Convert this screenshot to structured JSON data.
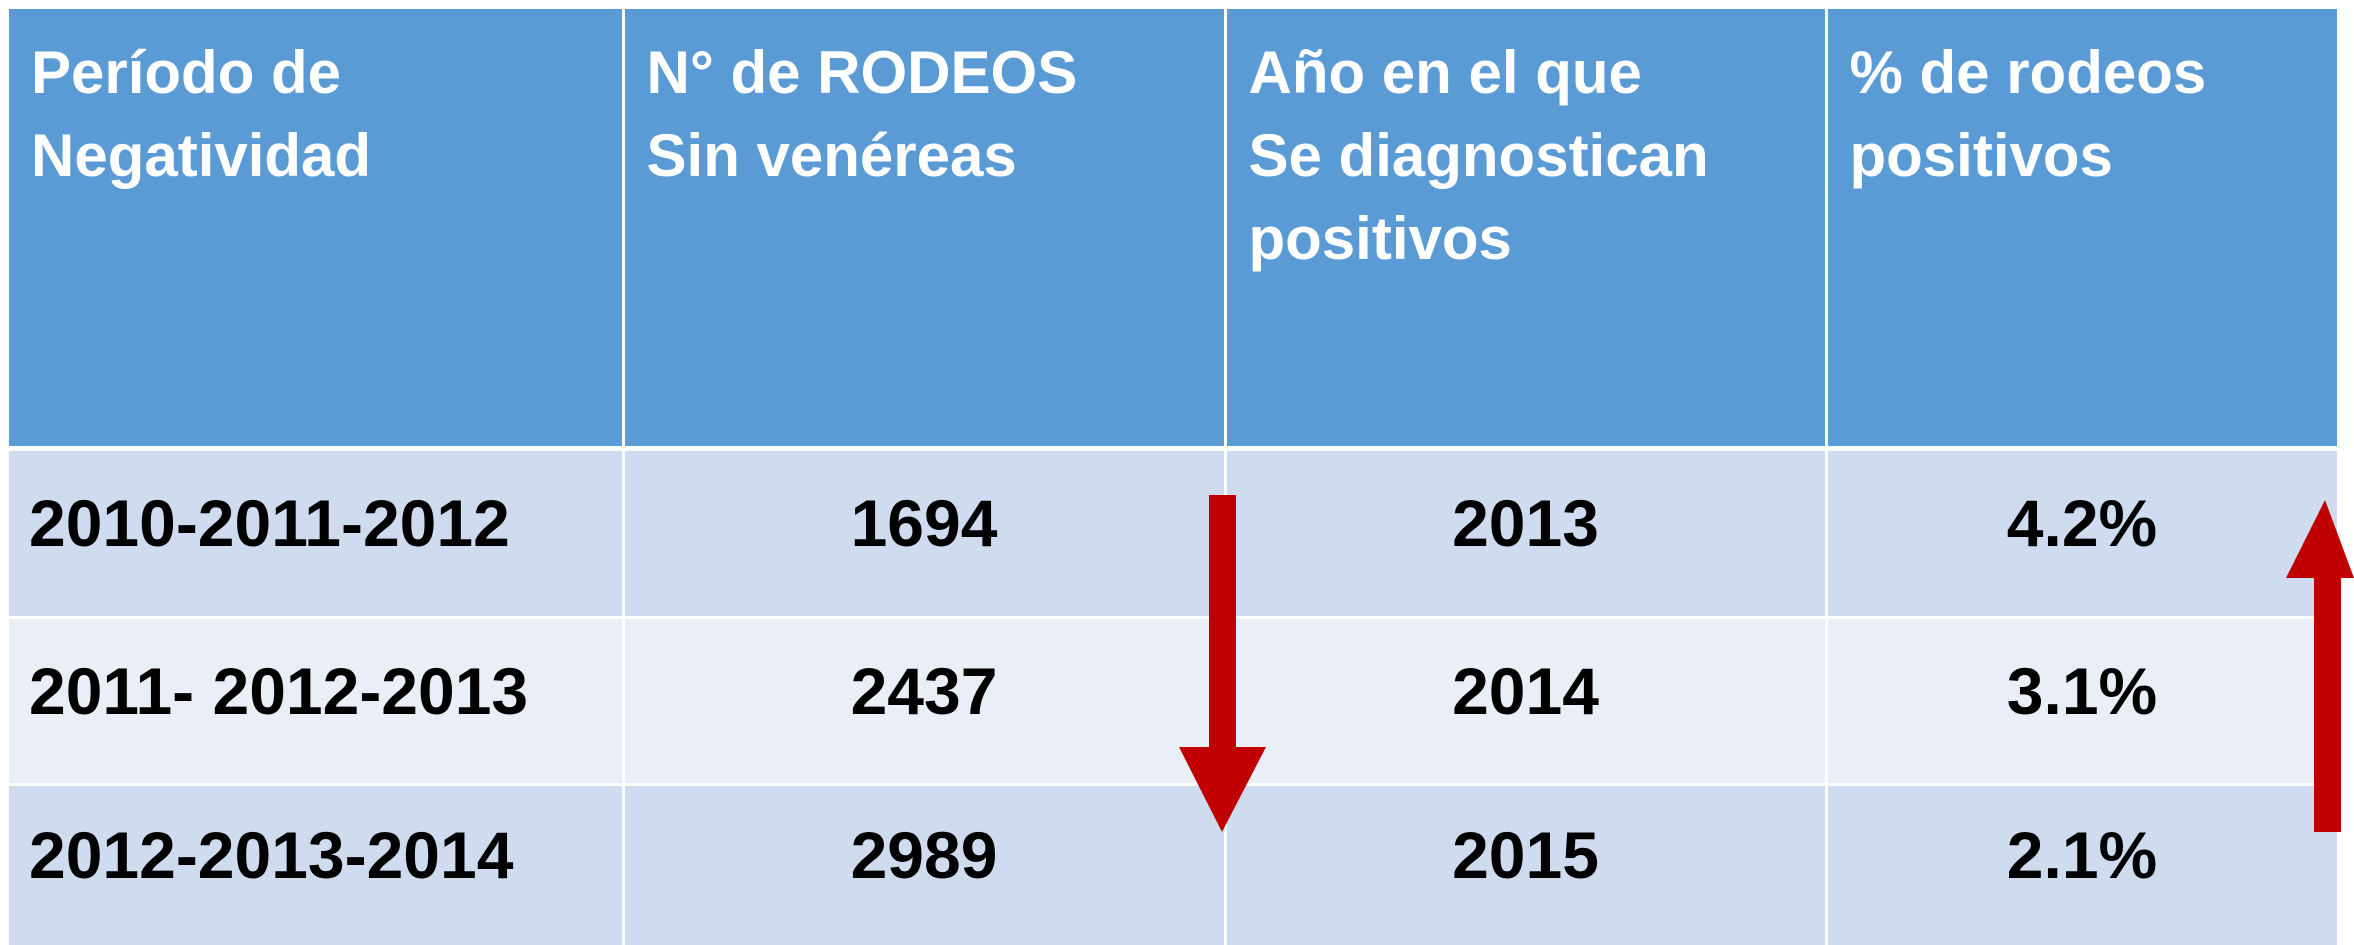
{
  "table": {
    "header": [
      "Período de\nNegatividad",
      "N°  de RODEOS\nSin venéreas",
      "Año en el que\nSe diagnostican\npositivos",
      "% de rodeos\npositivos"
    ],
    "rows": [
      [
        "2010-2011-2012",
        "1694",
        "2013",
        "4.2%"
      ],
      [
        "2011- 2012-2013",
        "2437",
        "2014",
        "3.1%"
      ],
      [
        "2012-2013-2014",
        "2989",
        "2015",
        "2.1%"
      ]
    ]
  }
}
